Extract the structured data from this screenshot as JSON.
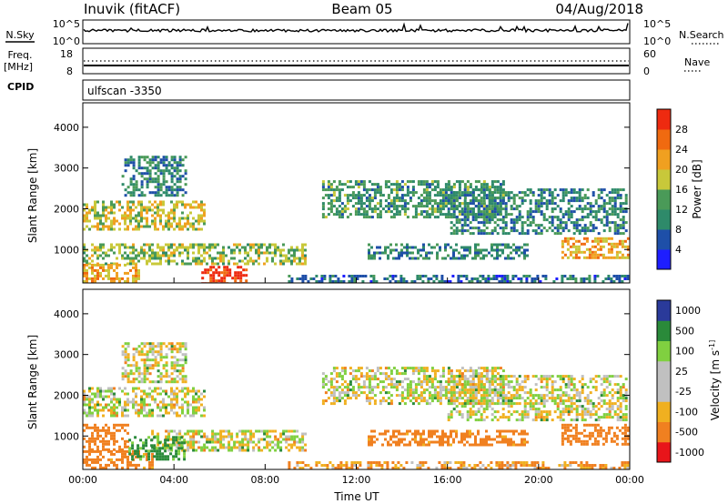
{
  "header": {
    "station": "Inuvik (fitACF)",
    "beam": "Beam 05",
    "date": "04/Aug/2018"
  },
  "noise_panel": {
    "left_label": "N.Sky",
    "left_ticks": [
      "10^5",
      "10^0"
    ],
    "right_label": "N.Search",
    "right_ticks": [
      "10^5",
      "10^0"
    ]
  },
  "freq_panel": {
    "left_label_1": "Freq.",
    "left_label_2": "[MHz]",
    "left_ticks": [
      "18",
      "8"
    ],
    "right_label": "Nave",
    "right_ticks": [
      "60",
      "0"
    ]
  },
  "cpid": {
    "label": "CPID",
    "value": "ulfscan -3350"
  },
  "colors": {
    "power_scale": [
      "#1e1eff",
      "#1e4fa8",
      "#2e8a6a",
      "#4a9a58",
      "#c8c83a",
      "#f0a020",
      "#f06a10",
      "#ee2a10"
    ],
    "velocity_scale": [
      "#e8151a",
      "#f08020",
      "#f0b020",
      "#c0c0c0",
      "#c0c0c0",
      "#80d040",
      "#2a8a3a",
      "#2a3a9a"
    ]
  },
  "chart_data": [
    {
      "type": "heatmap",
      "title": "",
      "xlabel": "",
      "ylabel": "Slant Range [km]",
      "x_ticks": [
        "00:00",
        "04:00",
        "08:00",
        "12:00",
        "16:00",
        "20:00",
        "00:00"
      ],
      "y_ticks": [
        "1000",
        "2000",
        "3000",
        "4000"
      ],
      "ylim": [
        180,
        4600
      ],
      "xlim_hours": [
        0,
        24
      ],
      "colorbar_label": "Power [dB]",
      "colorbar_ticks": [
        "28",
        "24",
        "20",
        "16",
        "12",
        "8",
        "4"
      ],
      "colorbar_range": [
        0,
        32
      ],
      "bands": [
        {
          "t0": 0.0,
          "t1": 5.3,
          "r0": 1500,
          "r1": 2200,
          "level": 18
        },
        {
          "t0": 1.7,
          "t1": 4.5,
          "r0": 2300,
          "r1": 3300,
          "level": 10
        },
        {
          "t0": 0.0,
          "t1": 9.8,
          "r0": 650,
          "r1": 1150,
          "level": 16
        },
        {
          "t0": 0.0,
          "t1": 2.5,
          "r0": 180,
          "r1": 650,
          "level": 22
        },
        {
          "t0": 5.2,
          "t1": 7.2,
          "r0": 180,
          "r1": 600,
          "level": 30
        },
        {
          "t0": 9.0,
          "t1": 24.0,
          "r0": 180,
          "r1": 380,
          "level": 8
        },
        {
          "t0": 10.5,
          "t1": 18.5,
          "r0": 1800,
          "r1": 2700,
          "level": 12
        },
        {
          "t0": 16.0,
          "t1": 23.9,
          "r0": 1400,
          "r1": 2500,
          "level": 10
        },
        {
          "t0": 12.5,
          "t1": 19.5,
          "r0": 800,
          "r1": 1150,
          "level": 10
        },
        {
          "t0": 21.0,
          "t1": 24.0,
          "r0": 800,
          "r1": 1300,
          "level": 22
        }
      ]
    },
    {
      "type": "heatmap",
      "title": "",
      "xlabel": "Time UT",
      "ylabel": "Slant Range [km]",
      "x_ticks": [
        "00:00",
        "04:00",
        "08:00",
        "12:00",
        "16:00",
        "20:00",
        "00:00"
      ],
      "y_ticks": [
        "1000",
        "2000",
        "3000",
        "4000"
      ],
      "ylim": [
        180,
        4600
      ],
      "xlim_hours": [
        0,
        24
      ],
      "colorbar_label": "Velocity [m s^-1]",
      "colorbar_ticks": [
        "1000",
        "500",
        "100",
        "25",
        "-25",
        "-100",
        "-500",
        "-1000"
      ],
      "bands": [
        {
          "t0": 0.0,
          "t1": 5.3,
          "r0": 1500,
          "r1": 2200,
          "velocity": 0
        },
        {
          "t0": 1.7,
          "t1": 4.5,
          "r0": 2300,
          "r1": 3300,
          "velocity": 0
        },
        {
          "t0": 0.0,
          "t1": 2.0,
          "r0": 650,
          "r1": 1300,
          "velocity": -300
        },
        {
          "t0": 0.0,
          "t1": 3.0,
          "r0": 180,
          "r1": 650,
          "velocity": -200
        },
        {
          "t0": 3.0,
          "t1": 9.8,
          "r0": 650,
          "r1": 1150,
          "velocity": 0
        },
        {
          "t0": 2.0,
          "t1": 4.5,
          "r0": 400,
          "r1": 1000,
          "velocity": 150
        },
        {
          "t0": 9.0,
          "t1": 24.0,
          "r0": 180,
          "r1": 380,
          "velocity": -100
        },
        {
          "t0": 10.5,
          "t1": 18.5,
          "r0": 1800,
          "r1": 2700,
          "velocity": 0
        },
        {
          "t0": 16.0,
          "t1": 23.9,
          "r0": 1400,
          "r1": 2500,
          "velocity": 0
        },
        {
          "t0": 12.5,
          "t1": 19.5,
          "r0": 800,
          "r1": 1150,
          "velocity": -200
        },
        {
          "t0": 21.0,
          "t1": 24.0,
          "r0": 800,
          "r1": 1300,
          "velocity": -300
        }
      ]
    }
  ]
}
